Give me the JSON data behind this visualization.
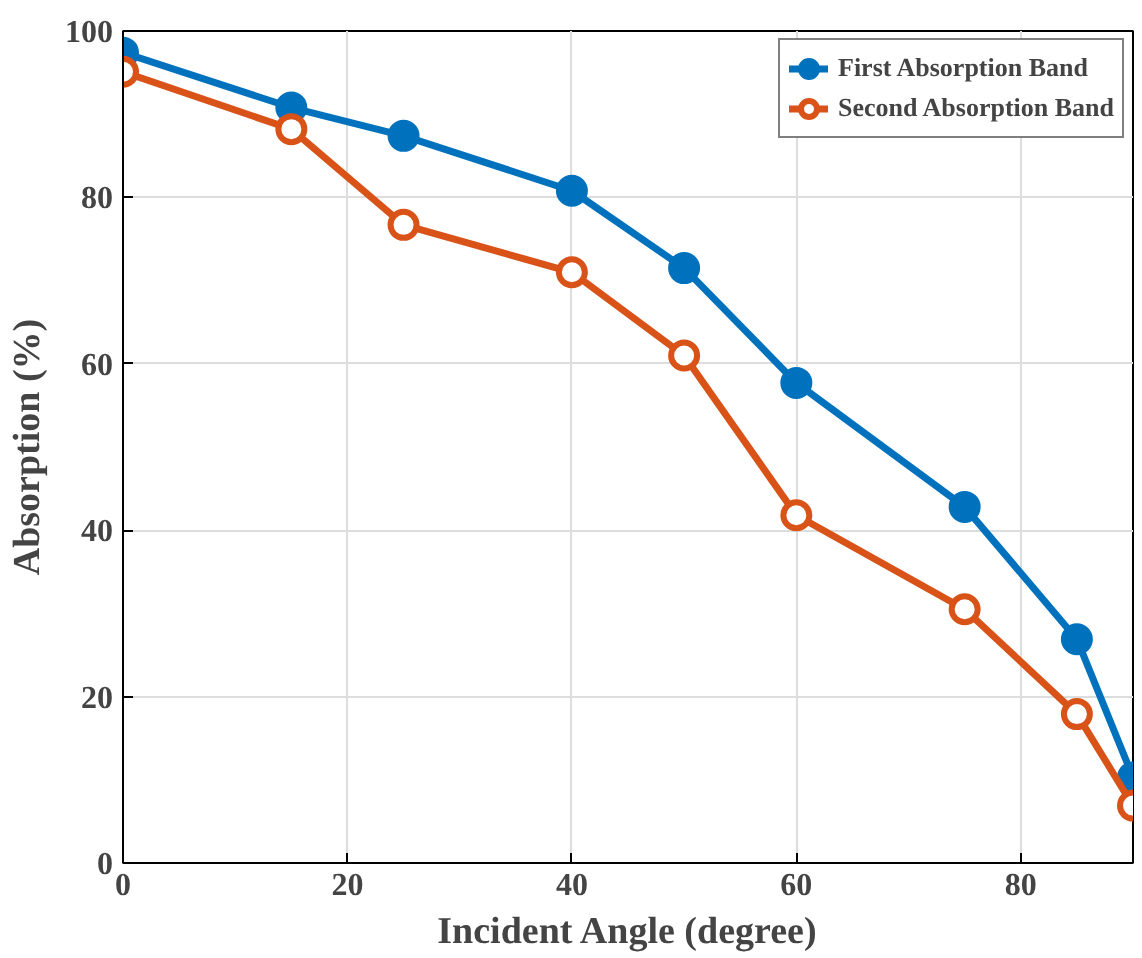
{
  "chart_data": {
    "type": "line",
    "xlabel": "Incident Angle (degree)",
    "ylabel": "Absorption (%)",
    "x": [
      0,
      15,
      25,
      40,
      50,
      60,
      75,
      85,
      90
    ],
    "series": [
      {
        "name": "First Absorption Band",
        "color": "#0072bd",
        "values": [
          97.4,
          90.8,
          87.4,
          80.8,
          71.5,
          57.7,
          42.8,
          26.9,
          10.3
        ]
      },
      {
        "name": "Second Absorption Band",
        "color": "#d95319",
        "values": [
          95.1,
          88.2,
          76.7,
          71,
          61,
          41.8,
          30.5,
          17.9,
          6.9
        ]
      }
    ],
    "xlim": [
      0,
      90
    ],
    "ylim": [
      0,
      100
    ],
    "xticks": [
      0,
      20,
      40,
      60,
      80
    ],
    "yticks": [
      0,
      20,
      40,
      60,
      80,
      100
    ],
    "grid": true,
    "legend": "top right",
    "marker": "circle",
    "line_style": "solid"
  }
}
